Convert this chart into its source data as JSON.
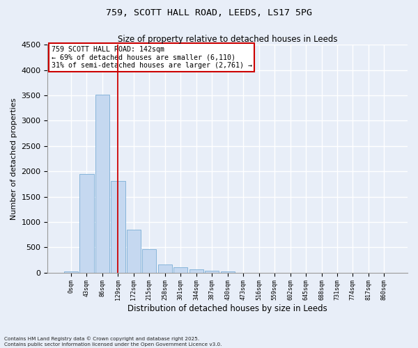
{
  "title_line1": "759, SCOTT HALL ROAD, LEEDS, LS17 5PG",
  "title_line2": "Size of property relative to detached houses in Leeds",
  "xlabel": "Distribution of detached houses by size in Leeds",
  "ylabel": "Number of detached properties",
  "bar_labels": [
    "0sqm",
    "43sqm",
    "86sqm",
    "129sqm",
    "172sqm",
    "215sqm",
    "258sqm",
    "301sqm",
    "344sqm",
    "387sqm",
    "430sqm",
    "473sqm",
    "516sqm",
    "559sqm",
    "602sqm",
    "645sqm",
    "688sqm",
    "731sqm",
    "774sqm",
    "817sqm",
    "860sqm"
  ],
  "bar_values": [
    25,
    1950,
    3520,
    1810,
    850,
    460,
    165,
    100,
    65,
    35,
    20,
    0,
    0,
    0,
    0,
    0,
    0,
    0,
    0,
    0,
    0
  ],
  "bar_color": "#c5d8f0",
  "bar_edge_color": "#7aaed6",
  "vline_x_index": 3,
  "vline_color": "#cc0000",
  "annotation_text": "759 SCOTT HALL ROAD: 142sqm\n← 69% of detached houses are smaller (6,110)\n31% of semi-detached houses are larger (2,761) →",
  "annotation_box_facecolor": "#ffffff",
  "annotation_box_edgecolor": "#cc0000",
  "ylim": [
    0,
    4500
  ],
  "yticks": [
    0,
    500,
    1000,
    1500,
    2000,
    2500,
    3000,
    3500,
    4000,
    4500
  ],
  "bg_color": "#e8eef8",
  "grid_color": "#ffffff",
  "footnote": "Contains HM Land Registry data © Crown copyright and database right 2025.\nContains public sector information licensed under the Open Government Licence v3.0."
}
